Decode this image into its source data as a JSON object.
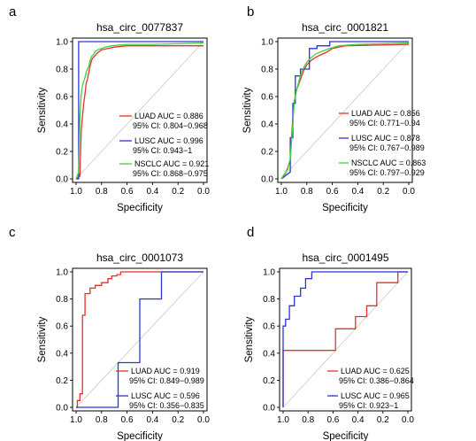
{
  "chart_data": [
    {
      "type": "line",
      "panel_label": "a",
      "title": "hsa_circ_0077837",
      "xlabel": "Specificity",
      "ylabel": "Sensitivity",
      "xlim": [
        1.0,
        0.0
      ],
      "ylim": [
        0.0,
        1.0
      ],
      "x_ticks": [
        "1.0",
        "0.8",
        "0.6",
        "0.4",
        "0.2",
        "0.0"
      ],
      "y_ticks": [
        "0.0",
        "0.2",
        "0.4",
        "0.6",
        "0.8",
        "1.0"
      ],
      "reference_diagonal": true,
      "legend_position": "bottom-right",
      "series": [
        {
          "name": "LUAD",
          "color": "#e8312a",
          "legend_line1": "LUAD AUC = 0.886",
          "legend_line2": "95% CI: 0.804−0.968",
          "x": [
            1.0,
            0.97,
            0.96,
            0.94,
            0.93,
            0.92,
            0.91,
            0.9,
            0.89,
            0.88,
            0.87,
            0.85,
            0.83,
            0.8,
            0.75,
            0.7,
            0.6,
            0.0
          ],
          "y": [
            0.0,
            0.02,
            0.35,
            0.55,
            0.62,
            0.7,
            0.73,
            0.78,
            0.82,
            0.86,
            0.88,
            0.9,
            0.92,
            0.94,
            0.95,
            0.96,
            0.97,
            0.97
          ]
        },
        {
          "name": "LUSC",
          "color": "#2b35d6",
          "legend_line1": "LUSC AUC = 0.996",
          "legend_line2": "95% CI: 0.943−1",
          "x": [
            1.0,
            0.98,
            0.98,
            0.5,
            0.0
          ],
          "y": [
            0.0,
            0.0,
            1.0,
            1.0,
            1.0
          ]
        },
        {
          "name": "NSCLC",
          "color": "#37d63b",
          "legend_line1": "NSCLC AUC = 0.921",
          "legend_line2": "95% CI: 0.868−0.975",
          "x": [
            1.0,
            0.98,
            0.97,
            0.96,
            0.95,
            0.93,
            0.92,
            0.9,
            0.89,
            0.88,
            0.86,
            0.85,
            0.83,
            0.8,
            0.77,
            0.72,
            0.6,
            0.4,
            0.0
          ],
          "y": [
            0.0,
            0.05,
            0.45,
            0.62,
            0.68,
            0.74,
            0.78,
            0.82,
            0.86,
            0.89,
            0.91,
            0.93,
            0.94,
            0.95,
            0.96,
            0.97,
            0.98,
            0.98,
            0.99
          ]
        }
      ]
    },
    {
      "type": "line",
      "panel_label": "b",
      "title": "hsa_circ_0001821",
      "xlabel": "Specificity",
      "ylabel": "Sensitivity",
      "xlim": [
        1.0,
        0.0
      ],
      "ylim": [
        0.0,
        1.0
      ],
      "x_ticks": [
        "1.0",
        "0.8",
        "0.6",
        "0.4",
        "0.2",
        "0.0"
      ],
      "y_ticks": [
        "0.0",
        "0.2",
        "0.4",
        "0.6",
        "0.8",
        "1.0"
      ],
      "reference_diagonal": true,
      "legend_position": "bottom-right",
      "series": [
        {
          "name": "LUAD",
          "color": "#e8312a",
          "legend_line1": "LUAD AUC = 0.856",
          "legend_line2": "95% CI: 0.771−0.94",
          "x": [
            1.0,
            0.97,
            0.95,
            0.93,
            0.92,
            0.91,
            0.9,
            0.88,
            0.86,
            0.84,
            0.82,
            0.8,
            0.77,
            0.74,
            0.7,
            0.65,
            0.6,
            0.5,
            0.0
          ],
          "y": [
            0.0,
            0.04,
            0.08,
            0.14,
            0.3,
            0.45,
            0.56,
            0.65,
            0.7,
            0.75,
            0.8,
            0.83,
            0.86,
            0.88,
            0.9,
            0.92,
            0.95,
            0.97,
            0.98
          ]
        },
        {
          "name": "LUSC",
          "color": "#2b35d6",
          "legend_line1": "LUSC AUC = 0.878",
          "legend_line2": "95% CI: 0.767−0.989",
          "x": [
            1.0,
            0.93,
            0.93,
            0.91,
            0.91,
            0.89,
            0.89,
            0.85,
            0.85,
            0.78,
            0.78,
            0.72,
            0.72,
            0.62,
            0.62,
            0.5,
            0.5,
            0.0
          ],
          "y": [
            0.0,
            0.05,
            0.3,
            0.3,
            0.55,
            0.55,
            0.75,
            0.75,
            0.8,
            0.8,
            0.95,
            0.95,
            0.97,
            0.97,
            1.0,
            1.0,
            1.0,
            1.0
          ]
        },
        {
          "name": "NSCLC",
          "color": "#37d63b",
          "legend_line1": "NSCLC AUC = 0.863",
          "legend_line2": "95% CI: 0.797−0.929",
          "x": [
            1.0,
            0.98,
            0.95,
            0.93,
            0.91,
            0.9,
            0.88,
            0.86,
            0.84,
            0.82,
            0.8,
            0.77,
            0.73,
            0.68,
            0.62,
            0.55,
            0.4,
            0.0
          ],
          "y": [
            0.0,
            0.03,
            0.07,
            0.15,
            0.4,
            0.55,
            0.65,
            0.72,
            0.78,
            0.82,
            0.85,
            0.88,
            0.91,
            0.93,
            0.95,
            0.97,
            0.98,
            0.99
          ]
        }
      ]
    },
    {
      "type": "line",
      "panel_label": "c",
      "title": "hsa_circ_0001073",
      "xlabel": "Specificity",
      "ylabel": "Sensitivity",
      "xlim": [
        1.0,
        0.0
      ],
      "ylim": [
        0.0,
        1.0
      ],
      "x_ticks": [
        "1.0",
        "0.8",
        "0.6",
        "0.4",
        "0.2",
        "0.0"
      ],
      "y_ticks": [
        "0.0",
        "0.2",
        "0.4",
        "0.6",
        "0.8",
        "1.0"
      ],
      "reference_diagonal": true,
      "legend_position": "bottom-right",
      "series": [
        {
          "name": "LUAD",
          "color": "#e8312a",
          "legend_line1": "LUAD AUC = 0.919",
          "legend_line2": "95% CI: 0.849−0.989",
          "x": [
            1.0,
            0.99,
            0.99,
            0.97,
            0.97,
            0.95,
            0.95,
            0.93,
            0.93,
            0.89,
            0.89,
            0.85,
            0.85,
            0.8,
            0.8,
            0.75,
            0.75,
            0.72,
            0.72,
            0.68,
            0.68,
            0.65,
            0.65,
            0.0
          ],
          "y": [
            0.0,
            0.0,
            0.05,
            0.05,
            0.1,
            0.1,
            0.68,
            0.68,
            0.84,
            0.84,
            0.88,
            0.88,
            0.9,
            0.9,
            0.92,
            0.92,
            0.95,
            0.95,
            0.97,
            0.97,
            0.98,
            0.98,
            1.0,
            1.0
          ]
        },
        {
          "name": "LUSC",
          "color": "#2b35d6",
          "legend_line1": "LUSC AUC = 0.596",
          "legend_line2": "95% CI: 0.356−0.835",
          "x": [
            1.0,
            0.67,
            0.67,
            0.5,
            0.5,
            0.33,
            0.33,
            0.0
          ],
          "y": [
            0.0,
            0.0,
            0.33,
            0.33,
            0.8,
            0.8,
            1.0,
            1.0
          ]
        }
      ]
    },
    {
      "type": "line",
      "panel_label": "d",
      "title": "hsa_circ_0001495",
      "xlabel": "Specificity",
      "ylabel": "Sensitivity",
      "xlim": [
        1.0,
        0.0
      ],
      "ylim": [
        0.0,
        1.0
      ],
      "x_ticks": [
        "1.0",
        "0.8",
        "0.6",
        "0.4",
        "0.2",
        "0.0"
      ],
      "y_ticks": [
        "0.0",
        "0.2",
        "0.4",
        "0.6",
        "0.8",
        "1.0"
      ],
      "reference_diagonal": true,
      "legend_position": "bottom-right",
      "series": [
        {
          "name": "LUAD",
          "color": "#e8312a",
          "legend_line1": "LUAD AUC = 0.625",
          "legend_line2": "95% CI: 0.386−0.864",
          "x": [
            1.0,
            1.0,
            0.58,
            0.58,
            0.42,
            0.42,
            0.33,
            0.33,
            0.25,
            0.25,
            0.08,
            0.08,
            0.0
          ],
          "y": [
            0.0,
            0.42,
            0.42,
            0.58,
            0.58,
            0.67,
            0.67,
            0.75,
            0.75,
            0.92,
            0.92,
            1.0,
            1.0
          ]
        },
        {
          "name": "LUSC",
          "color": "#2b35d6",
          "legend_line1": "LUSC AUC = 0.965",
          "legend_line2": "95% CI: 0.923−1",
          "x": [
            1.0,
            1.0,
            0.98,
            0.98,
            0.95,
            0.95,
            0.91,
            0.91,
            0.86,
            0.86,
            0.82,
            0.82,
            0.77,
            0.77,
            0.0
          ],
          "y": [
            0.0,
            0.6,
            0.6,
            0.65,
            0.65,
            0.75,
            0.75,
            0.82,
            0.82,
            0.88,
            0.88,
            0.95,
            0.95,
            1.0,
            1.0
          ]
        }
      ]
    }
  ]
}
